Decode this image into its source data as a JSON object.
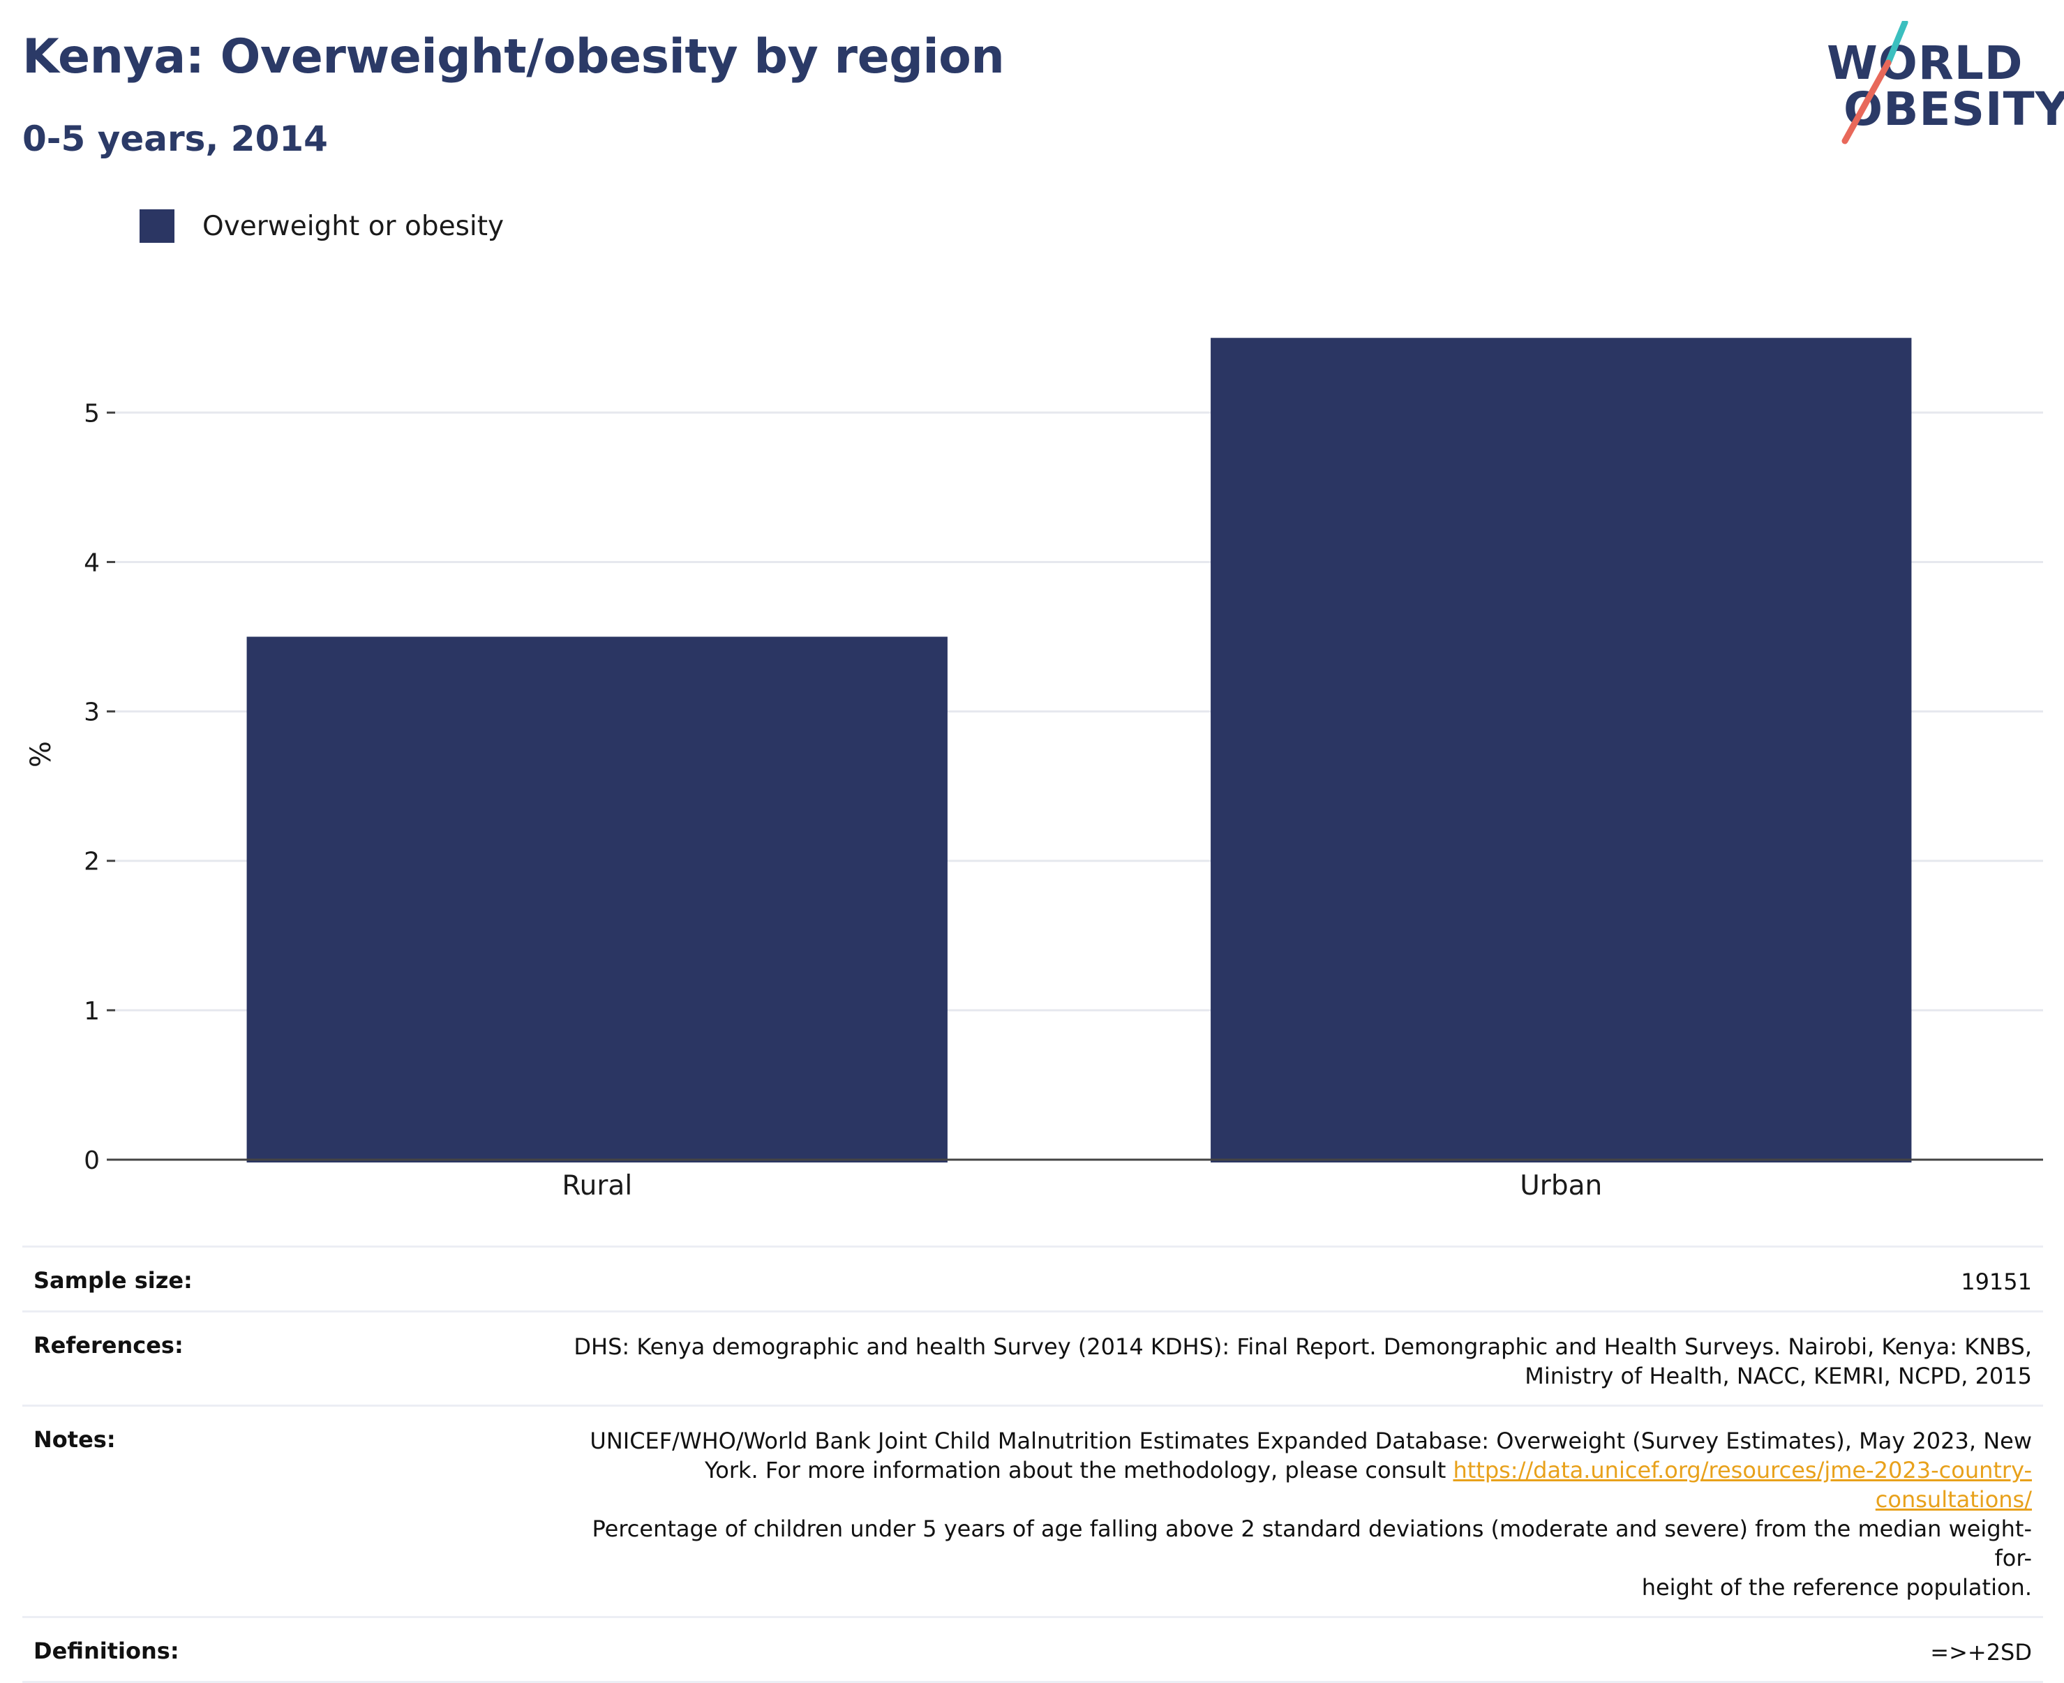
{
  "header": {
    "title": "Kenya: Overweight/obesity by region",
    "subtitle": "0-5 years, 2014"
  },
  "logo": {
    "line1": "WORLD",
    "line2": "OBESITY",
    "accent_teal": "#3bbfbf",
    "accent_coral": "#e8685a",
    "navy": "#2b3a67"
  },
  "colors": {
    "bar": "#2b3663",
    "grid": "#e6e8ee",
    "axis": "#444444"
  },
  "chart_data": {
    "type": "bar",
    "categories": [
      "Rural",
      "Urban"
    ],
    "series": [
      {
        "name": "Overweight or obesity",
        "values": [
          3.5,
          5.5
        ]
      }
    ],
    "ylabel": "%",
    "ylim": [
      0,
      5.8
    ],
    "yticks": [
      0,
      1,
      2,
      3,
      4,
      5
    ],
    "grid": true,
    "legend": "top-left"
  },
  "footer": {
    "sample_size": {
      "label": "Sample size:",
      "value": "19151"
    },
    "references": {
      "label": "References:",
      "line1": "DHS: Kenya demographic and health Survey (2014 KDHS): Final Report. Demongraphic and Health Surveys. Nairobi, Kenya: KNBS,",
      "line2": "Ministry of Health, NACC, KEMRI, NCPD, 2015"
    },
    "notes": {
      "label": "Notes:",
      "line1": "UNICEF/WHO/World Bank Joint Child Malnutrition Estimates Expanded Database: Overweight (Survey Estimates), May 2023, New",
      "line2_prefix": "York. For more information about the methodology, please consult ",
      "link": "https://data.unicef.org/resources/jme-2023-country-consultations/",
      "line3": "Percentage of children under 5 years of age falling above 2 standard deviations (moderate and severe) from the median weight-for-",
      "line4": "height of the reference population."
    },
    "definitions": {
      "label": "Definitions:",
      "value": "=>+2SD"
    }
  }
}
